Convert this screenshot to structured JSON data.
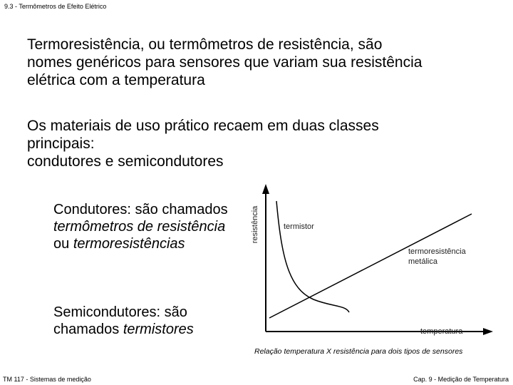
{
  "header": "9.3 - Termômetros de Efeito Elétrico",
  "paragraph1": [
    "Termoresistência, ou termômetros de resistência, são",
    "nomes genéricos para sensores que variam sua resistência",
    "elétrica com a temperatura"
  ],
  "paragraph2": [
    "Os materiais de uso prático recaem em duas classes",
    "principais:",
    "condutores e semicondutores"
  ],
  "condutores": {
    "lead": "Condutores: são chamados",
    "italic1": "termômetros de resistência",
    "join": "ou",
    "italic2": "termoresistências"
  },
  "semicondutores": {
    "lead": "Semicondutores: são chamados",
    "italic": "termistores"
  },
  "diagram": {
    "y_axis": "resistência",
    "x_axis": "temperatura",
    "curve1": "termistor",
    "curve2": [
      "termoresistência",
      "metálica"
    ]
  },
  "caption": "Relação temperatura X resistência para dois tipos de sensores",
  "footer": {
    "left": "TM 117 - Sistemas de medição",
    "right": "Cap. 9 - Medição de Temperatura"
  }
}
